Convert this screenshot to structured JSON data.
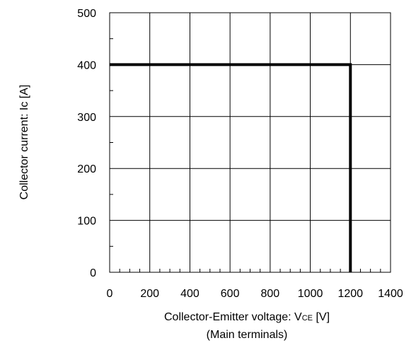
{
  "chart_data": {
    "type": "line",
    "title": "",
    "xlabel": {
      "prefix": "Collector-Emitter voltage: V",
      "subscript": "CE",
      "suffix": " [V]"
    },
    "xlabel_note": "(Main terminals)",
    "ylabel": "Collector current: Ic [A]",
    "xlim": [
      0,
      1400
    ],
    "ylim": [
      0,
      500
    ],
    "x_ticks": [
      0,
      200,
      400,
      600,
      800,
      1000,
      1200,
      1400
    ],
    "x_tick_labels": [
      "0",
      "200",
      "400",
      "600",
      "800",
      "1000",
      "1200",
      "1400"
    ],
    "y_ticks": [
      0,
      100,
      200,
      300,
      400,
      500
    ],
    "y_tick_labels": [
      "0",
      "100",
      "200",
      "300",
      "400",
      "500"
    ],
    "x_minor_step": 50,
    "y_minor_step": 50,
    "grid": true,
    "series": [
      {
        "x": [
          0,
          1200,
          1200
        ],
        "y": [
          400,
          400,
          0
        ],
        "color": "#000000"
      }
    ]
  }
}
